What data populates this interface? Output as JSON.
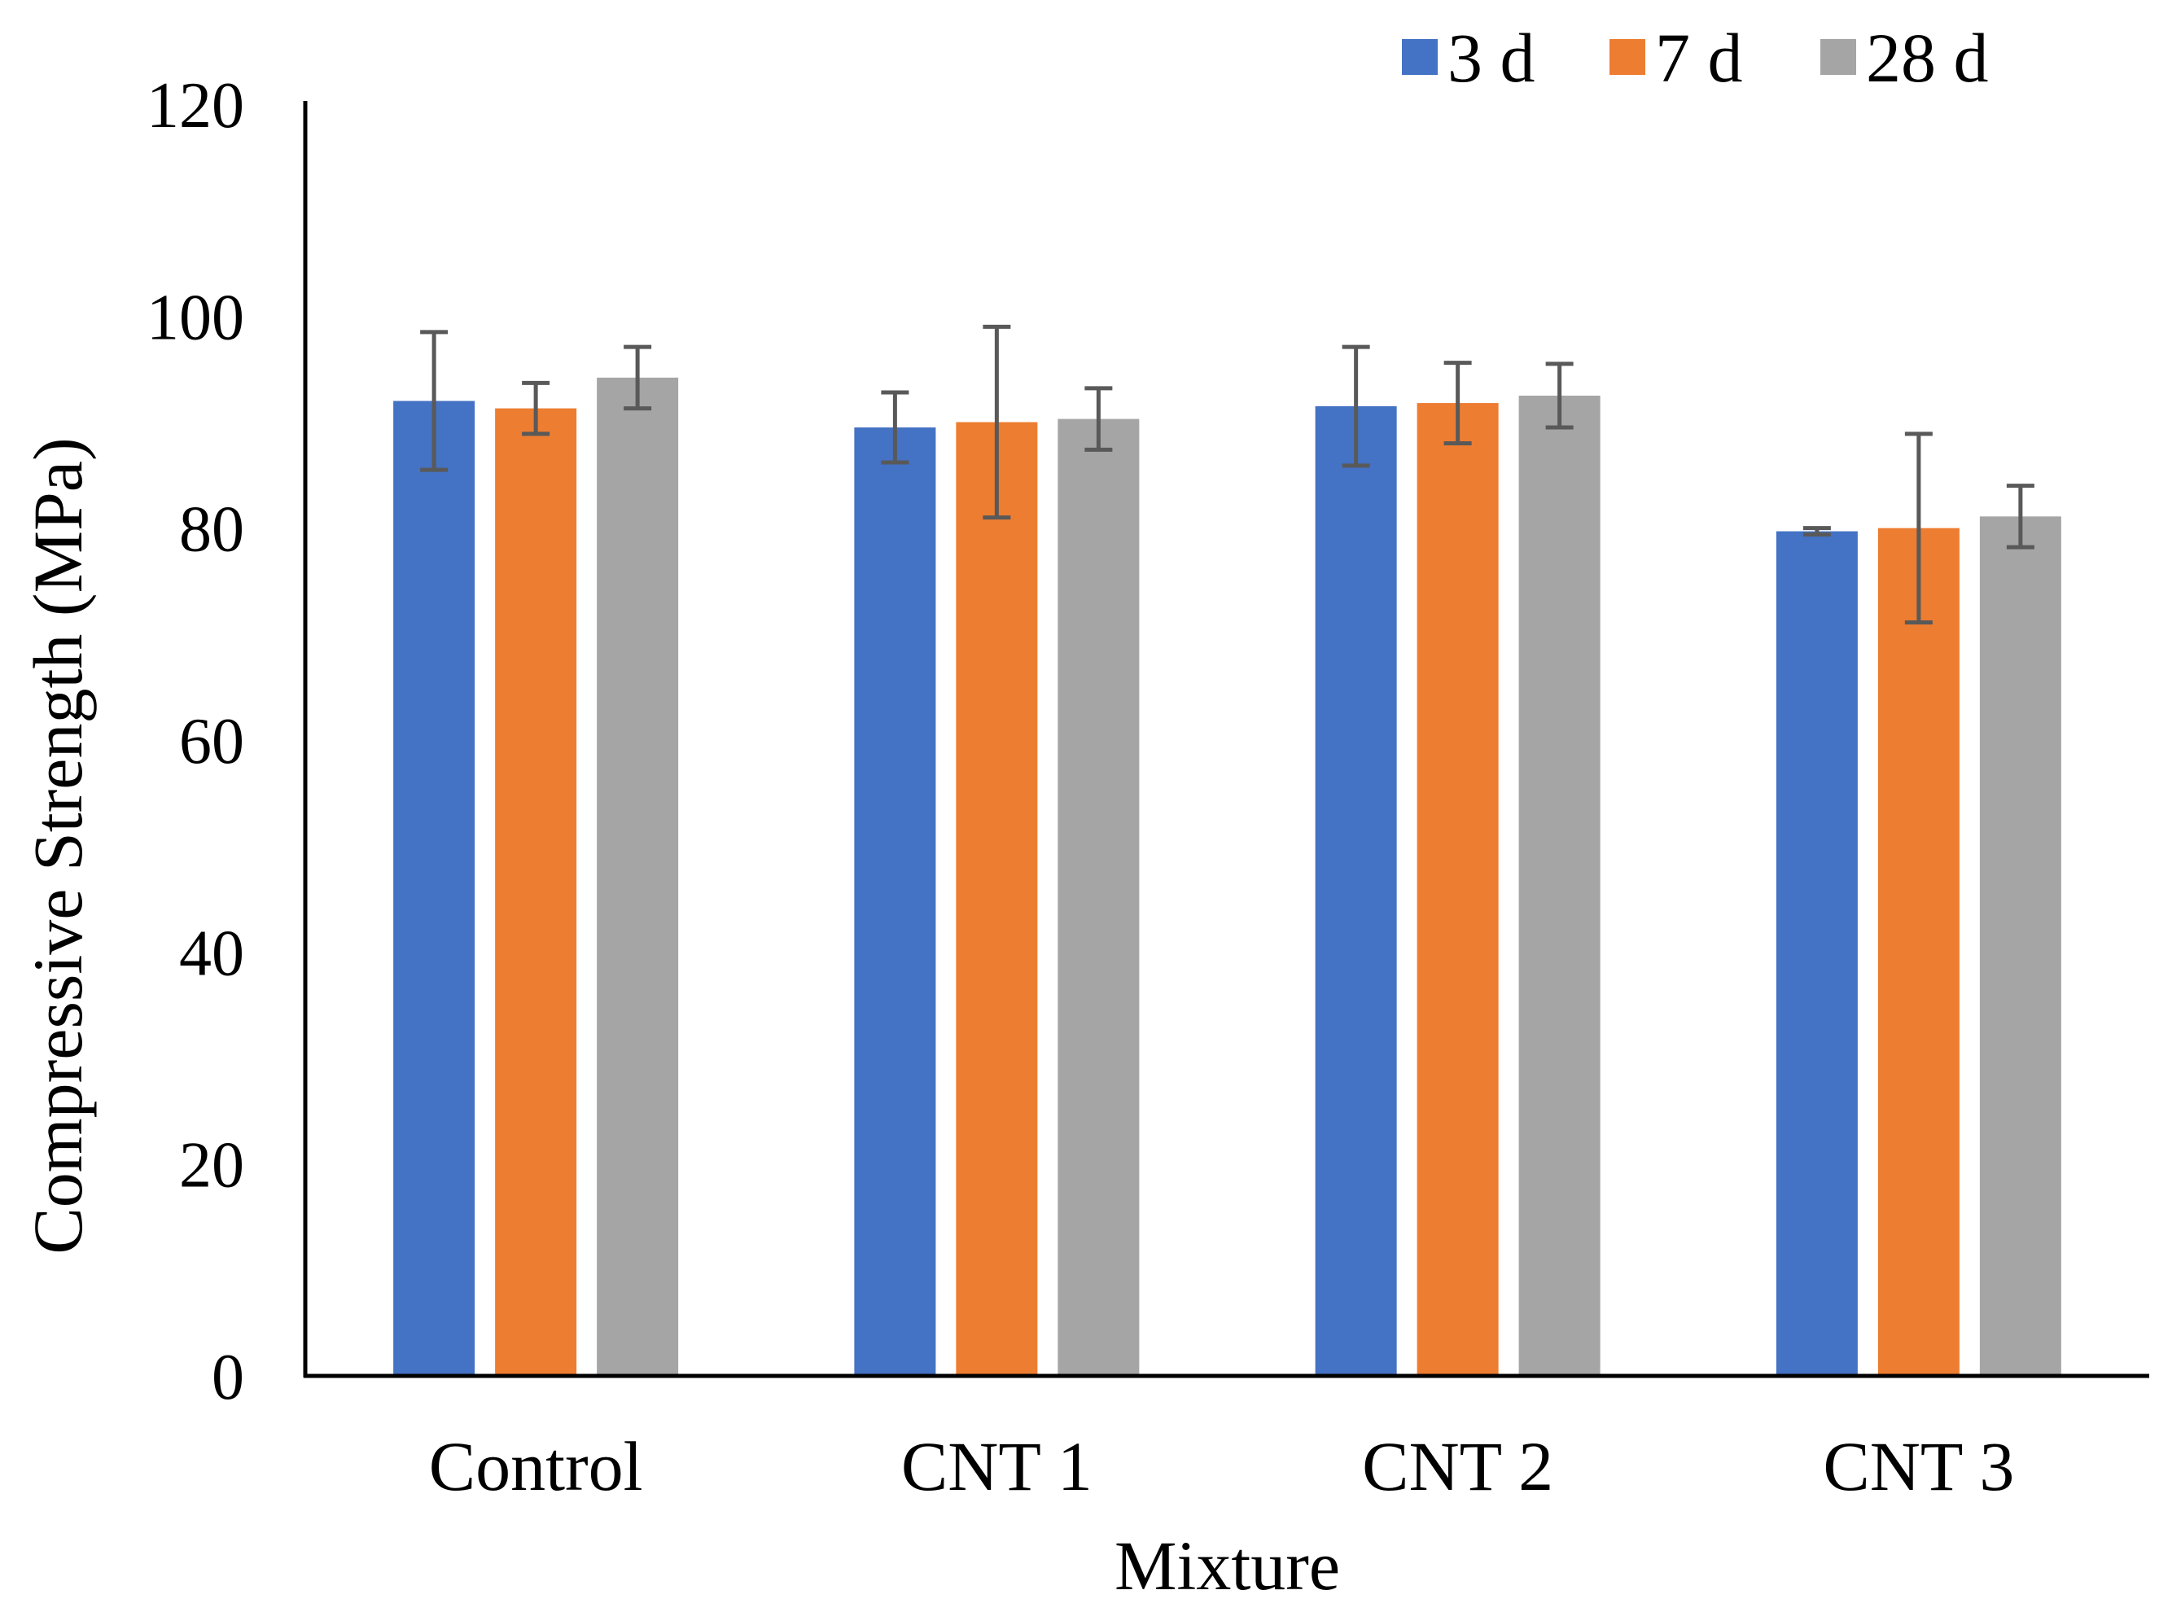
{
  "chart_data": {
    "type": "bar",
    "title": "",
    "xlabel": "Mixture",
    "ylabel": "Compressive Strength (MPa)",
    "ylim": [
      0,
      120
    ],
    "yticks": [
      0,
      20,
      40,
      60,
      80,
      100,
      120
    ],
    "categories": [
      "Control",
      "CNT 1",
      "CNT 2",
      "CNT 3"
    ],
    "series": [
      {
        "name": "3 d",
        "color": "#4472C4",
        "values": [
          92.0,
          89.5,
          91.5,
          79.7
        ],
        "error": [
          6.5,
          3.3,
          5.6,
          0.3
        ]
      },
      {
        "name": "7 d",
        "color": "#ED7D31",
        "values": [
          91.3,
          90.0,
          91.8,
          80.0
        ],
        "error": [
          2.4,
          9.0,
          3.8,
          8.9
        ]
      },
      {
        "name": "28 d",
        "color": "#A5A5A5",
        "values": [
          94.2,
          90.3,
          92.5,
          81.1
        ],
        "error": [
          2.9,
          2.9,
          3.0,
          2.9
        ]
      }
    ],
    "error_bar_color": "#595959",
    "legend_position": "top-right",
    "grid": false
  }
}
